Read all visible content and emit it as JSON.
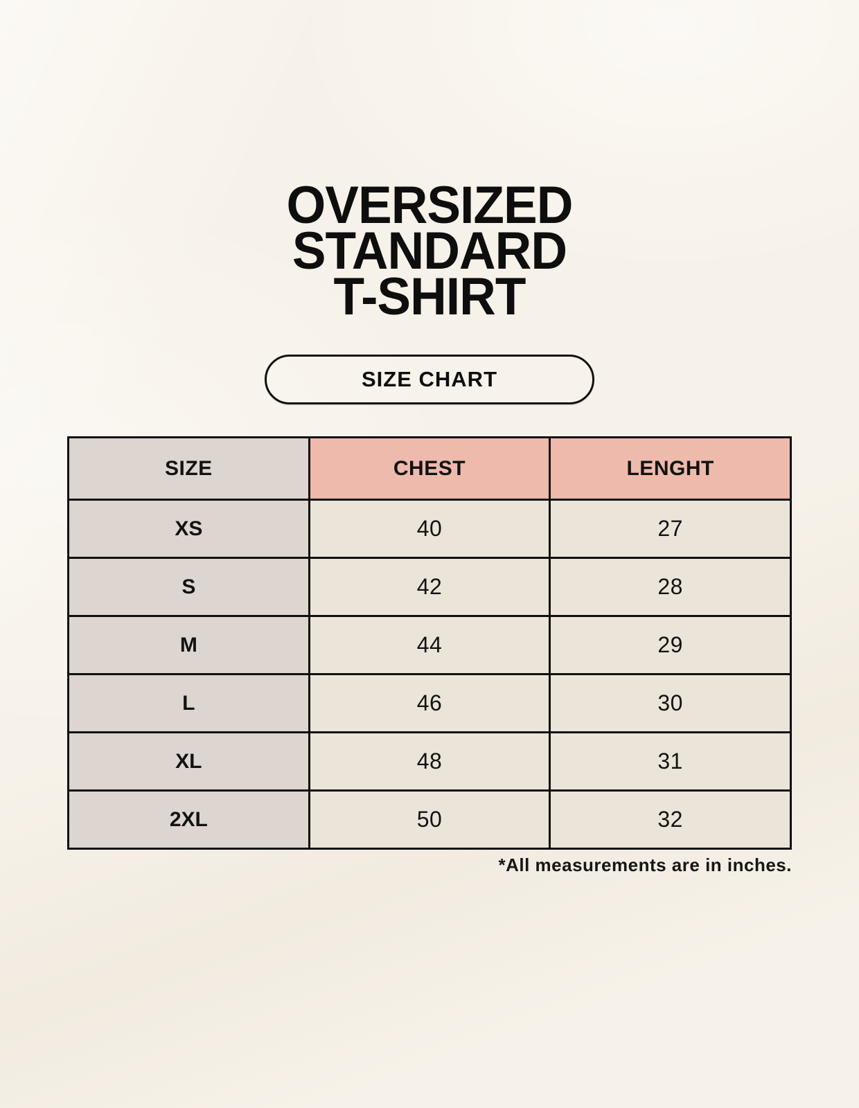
{
  "page": {
    "background_color": "#f7f2e9",
    "accent_color": "#edbaab",
    "size_column_color": "#ddd5d0",
    "cell_color": "#ebe4d8",
    "border_color": "#0f0f0f"
  },
  "title": {
    "line1": "OVERSIZED",
    "line2": "STANDARD",
    "line3": "T-SHIRT"
  },
  "size_chart_button": {
    "label": "SIZE CHART"
  },
  "table": {
    "columns": [
      "SIZE",
      "CHEST",
      "LENGHT"
    ],
    "rows": [
      {
        "size": "XS",
        "chest": "40",
        "length": "27"
      },
      {
        "size": "S",
        "chest": "42",
        "length": "28"
      },
      {
        "size": "M",
        "chest": "44",
        "length": "29"
      },
      {
        "size": "L",
        "chest": "46",
        "length": "30"
      },
      {
        "size": "XL",
        "chest": "48",
        "length": "31"
      },
      {
        "size": "2XL",
        "chest": "50",
        "length": "32"
      }
    ]
  },
  "footnote": {
    "text": "*All measurements are in inches."
  },
  "chart_data": {
    "type": "table",
    "title": "OVERSIZED STANDARD T-SHIRT — SIZE CHART",
    "columns": [
      "SIZE",
      "CHEST",
      "LENGHT"
    ],
    "rows": [
      [
        "XS",
        40,
        27
      ],
      [
        "S",
        42,
        28
      ],
      [
        "M",
        44,
        29
      ],
      [
        "L",
        46,
        30
      ],
      [
        "XL",
        48,
        31
      ],
      [
        "2XL",
        50,
        32
      ]
    ],
    "units": "inches",
    "note": "*All measurements are in inches."
  }
}
